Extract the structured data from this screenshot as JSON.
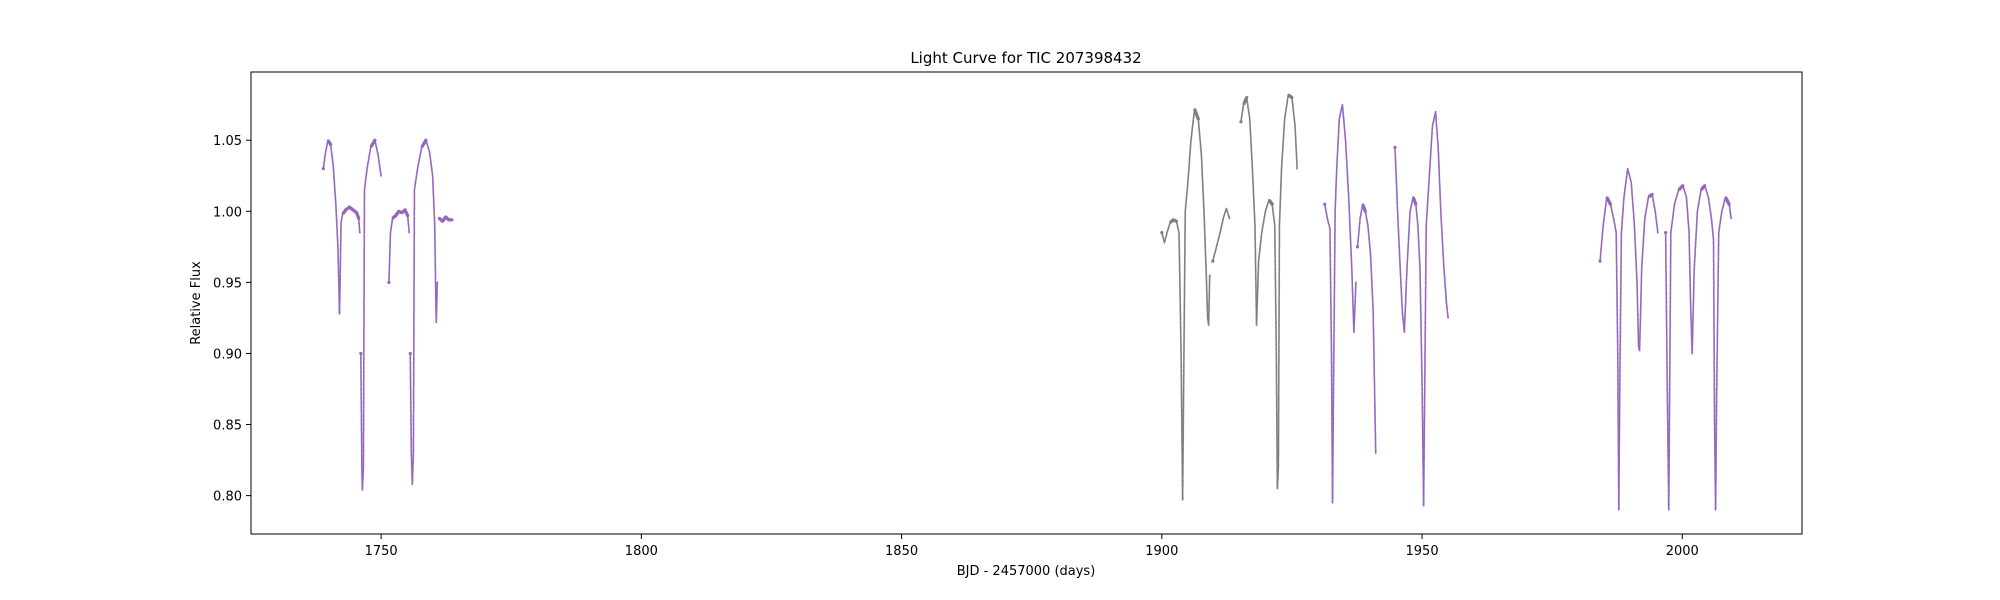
{
  "chart_data": {
    "type": "scatter",
    "title": "Light Curve for TIC 207398432",
    "xlabel": "BJD - 2457000 (days)",
    "ylabel": "Relative Flux",
    "xlim": [
      1725,
      2023
    ],
    "ylim": [
      0.773,
      1.098
    ],
    "xticks": [
      1750,
      1800,
      1850,
      1900,
      1950,
      2000
    ],
    "yticks": [
      0.8,
      0.85,
      0.9,
      0.95,
      1.0,
      1.05
    ],
    "grid": false,
    "legend": "none",
    "colors": {
      "purple": "#9467bd",
      "gray": "#7f7f7f"
    },
    "series": [
      {
        "color": "purple",
        "segments": [
          {
            "x": [
              1738.9,
              1739.3,
              1739.8,
              1740.3,
              1740.8,
              1741.3,
              1741.7,
              1741.9,
              1742.0,
              1742.1,
              1742.3,
              1742.6,
              1743.2,
              1743.9,
              1744.6,
              1745.3,
              1745.7,
              1745.9
            ],
            "y": [
              1.03,
              1.041,
              1.05,
              1.047,
              1.032,
              1.005,
              0.975,
              0.945,
              0.928,
              0.945,
              0.992,
              0.998,
              1.001,
              1.003,
              1.001,
              0.999,
              0.995,
              0.985
            ]
          },
          {
            "x": [
              1746.1,
              1746.3,
              1746.4,
              1746.6,
              1746.8,
              1747.3,
              1748.0,
              1748.8,
              1749.4,
              1750.0
            ],
            "y": [
              0.9,
              0.82,
              0.804,
              0.82,
              1.015,
              1.03,
              1.045,
              1.05,
              1.04,
              1.025
            ]
          },
          {
            "x": [
              1751.5,
              1751.8,
              1752.2,
              1752.8,
              1753.4,
              1754.0,
              1754.6,
              1755.1,
              1755.4
            ],
            "y": [
              0.95,
              0.985,
              0.995,
              0.997,
              1.0,
              0.999,
              1.001,
              0.997,
              0.985
            ]
          },
          {
            "x": [
              1755.6,
              1755.8,
              1756.0,
              1756.2,
              1756.4,
              1757.0,
              1757.8,
              1758.6,
              1759.3,
              1759.9,
              1760.3,
              1760.5,
              1760.6,
              1760.8
            ],
            "y": [
              0.9,
              0.83,
              0.808,
              0.83,
              1.015,
              1.03,
              1.045,
              1.05,
              1.042,
              1.025,
              0.99,
              0.94,
              0.922,
              0.95
            ]
          },
          {
            "x": [
              1761.2,
              1761.8,
              1762.4,
              1763.0,
              1763.6
            ],
            "y": [
              0.995,
              0.993,
              0.996,
              0.994,
              0.994
            ]
          },
          {
            "x": [
              1931.3,
              1931.8,
              1932.3,
              1932.6,
              1932.8,
              1933.0,
              1933.3,
              1933.6,
              1934.1,
              1934.7,
              1935.3,
              1935.9,
              1936.5,
              1936.9,
              1937.3
            ],
            "y": [
              1.005,
              0.995,
              0.988,
              0.9,
              0.795,
              0.88,
              1.0,
              1.03,
              1.065,
              1.075,
              1.05,
              1.01,
              0.96,
              0.915,
              0.95
            ]
          },
          {
            "x": [
              1937.6,
              1938.1,
              1938.6,
              1939.1,
              1939.6,
              1940.1,
              1940.6,
              1940.9,
              1941.1
            ],
            "y": [
              0.975,
              0.995,
              1.005,
              1.0,
              0.99,
              0.97,
              0.93,
              0.87,
              0.83
            ]
          },
          {
            "x": [
              1944.8,
              1945.3,
              1945.8,
              1946.2,
              1946.6,
              1947.1,
              1947.7,
              1948.3,
              1948.8,
              1949.2,
              1949.6,
              1950.0,
              1950.3,
              1950.5,
              1950.8,
              1951.4,
              1952.0,
              1952.6,
              1953.1,
              1953.6,
              1954.2,
              1954.7,
              1955.0
            ],
            "y": [
              1.045,
              1.0,
              0.96,
              0.93,
              0.915,
              0.96,
              1.0,
              1.01,
              1.005,
              0.99,
              0.96,
              0.88,
              0.793,
              0.87,
              0.99,
              1.025,
              1.06,
              1.07,
              1.045,
              1.0,
              0.96,
              0.935,
              0.925
            ]
          },
          {
            "x": [
              1984.2,
              1984.8,
              1985.5,
              1986.2,
              1986.8,
              1987.3,
              1987.6,
              1987.8,
              1988.0,
              1988.3,
              1988.8,
              1989.5,
              1990.2,
              1990.8,
              1991.3,
              1991.6,
              1991.8,
              1992.2,
              1992.8,
              1993.5,
              1994.2,
              1994.8,
              1995.3
            ],
            "y": [
              0.965,
              0.99,
              1.01,
              1.005,
              0.995,
              0.985,
              0.9,
              0.79,
              0.88,
              0.985,
              1.01,
              1.03,
              1.02,
              0.99,
              0.95,
              0.905,
              0.902,
              0.96,
              0.995,
              1.01,
              1.012,
              1.0,
              0.985
            ]
          },
          {
            "x": [
              1996.8,
              1997.1,
              1997.4,
              1997.8,
              1998.5,
              1999.3,
              2000.1,
              2000.8,
              2001.3,
              2001.6,
              2001.9,
              2002.3,
              2002.9,
              2003.6,
              2004.3,
              2005.0,
              2005.6,
              2006.0,
              2006.2,
              2006.4,
              2006.6,
              2007.0,
              2007.6,
              2008.3,
              2009.0,
              2009.4
            ],
            "y": [
              0.985,
              0.88,
              0.79,
              0.985,
              1.005,
              1.015,
              1.018,
              1.01,
              0.985,
              0.935,
              0.9,
              0.96,
              1.0,
              1.015,
              1.018,
              1.01,
              0.995,
              0.98,
              0.85,
              0.79,
              0.87,
              0.985,
              1.0,
              1.01,
              1.005,
              0.995
            ]
          }
        ]
      },
      {
        "color": "gray",
        "segments": [
          {
            "x": [
              1900.0,
              1900.5,
              1901.0,
              1901.6,
              1902.2,
              1902.8,
              1903.3,
              1903.7,
              1904.0,
              1904.2,
              1904.5,
              1905.0,
              1905.6,
              1906.3,
              1907.0,
              1907.6,
              1908.1,
              1908.5,
              1908.8,
              1909.0,
              1909.2
            ],
            "y": [
              0.985,
              0.978,
              0.985,
              0.992,
              0.994,
              0.993,
              0.985,
              0.9,
              0.797,
              0.88,
              1.0,
              1.02,
              1.05,
              1.072,
              1.065,
              1.04,
              1.0,
              0.96,
              0.925,
              0.92,
              0.955
            ]
          },
          {
            "x": [
              1909.8,
              1910.5,
              1911.2,
              1911.8,
              1912.4,
              1913.0
            ],
            "y": [
              0.965,
              0.975,
              0.985,
              0.995,
              1.002,
              0.995
            ]
          },
          {
            "x": [
              1915.2,
              1915.7,
              1916.3,
              1916.9,
              1917.4,
              1917.9,
              1918.2,
              1918.6,
              1919.2,
              1919.9,
              1920.6,
              1921.2,
              1921.7,
              1922.0,
              1922.2,
              1922.4,
              1922.6,
              1923.0,
              1923.6,
              1924.3,
              1925.0,
              1925.6,
              1926.0
            ],
            "y": [
              1.063,
              1.075,
              1.08,
              1.065,
              1.03,
              0.99,
              0.92,
              0.965,
              0.985,
              1.0,
              1.008,
              1.005,
              0.99,
              0.9,
              0.805,
              0.82,
              0.99,
              1.03,
              1.065,
              1.082,
              1.08,
              1.06,
              1.03
            ]
          }
        ]
      }
    ]
  }
}
